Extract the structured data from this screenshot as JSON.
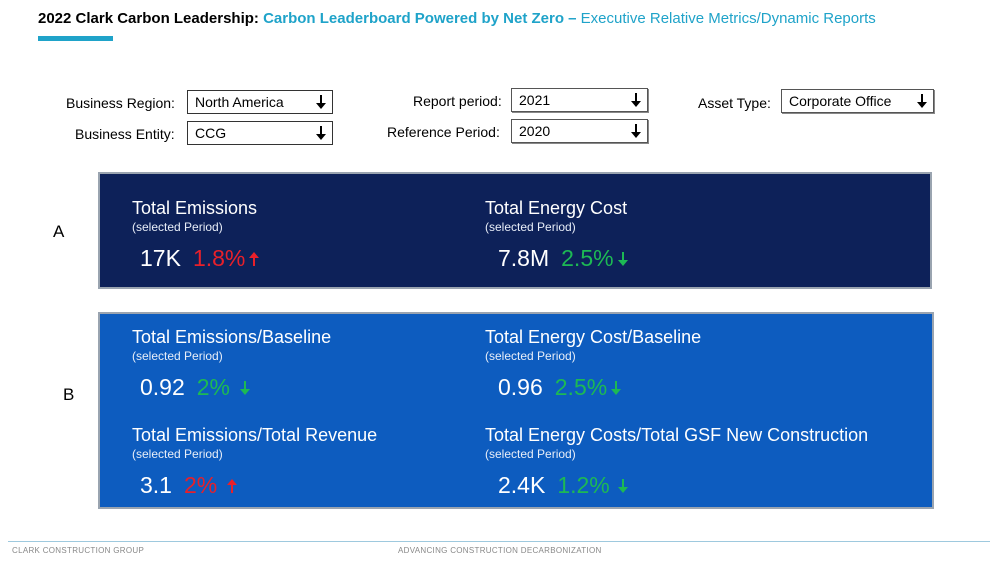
{
  "header": {
    "title_bold": "2022 Clark Carbon Leadership:",
    "title_teal": "Carbon Leaderboard Powered by Net Zero –",
    "title_light": "Executive Relative Metrics/Dynamic Reports"
  },
  "filters": {
    "business_region": {
      "label": "Business Region:",
      "value": "North America"
    },
    "business_entity": {
      "label": "Business Entity:",
      "value": "CCG"
    },
    "report_period": {
      "label": "Report period:",
      "value": "2021"
    },
    "reference_period": {
      "label": "Reference Period:",
      "value": "2020"
    },
    "asset_type": {
      "label": "Asset Type:",
      "value": "Corporate Office"
    }
  },
  "rows": {
    "a": "A",
    "b": "B"
  },
  "metrics": {
    "total_emissions": {
      "title": "Total Emissions",
      "sub": "(selected Period)",
      "value": "17K",
      "change": "1.8%",
      "direction": "up"
    },
    "total_energy_cost": {
      "title": "Total Energy Cost",
      "sub": "(selected Period)",
      "value": "7.8M",
      "change": "2.5%",
      "direction": "down"
    },
    "emissions_baseline": {
      "title": "Total Emissions/Baseline",
      "sub": "(selected Period)",
      "value": "0.92",
      "change": "2%",
      "direction": "down"
    },
    "energy_cost_baseline": {
      "title": "Total Energy Cost/Baseline",
      "sub": "(selected Period)",
      "value": "0.96",
      "change": "2.5%",
      "direction": "down"
    },
    "emissions_revenue": {
      "title": "Total Emissions/Total Revenue",
      "sub": "(selected Period)",
      "value": "3.1",
      "change": "2%",
      "direction": "up"
    },
    "energy_costs_gsf": {
      "title": "Total Energy Costs/Total GSF New Construction",
      "sub": "(selected Period)",
      "value": "2.4K",
      "change": "1.2%",
      "direction": "down"
    }
  },
  "colors": {
    "up": "#e8202a",
    "down": "#1db954",
    "panel_a": "#0d2159",
    "panel_b": "#0d5cbf",
    "accent": "#1fa3c9"
  },
  "footer": {
    "left": "CLARK CONSTRUCTION GROUP",
    "center": "ADVANCING CONSTRUCTION DECARBONIZATION"
  }
}
